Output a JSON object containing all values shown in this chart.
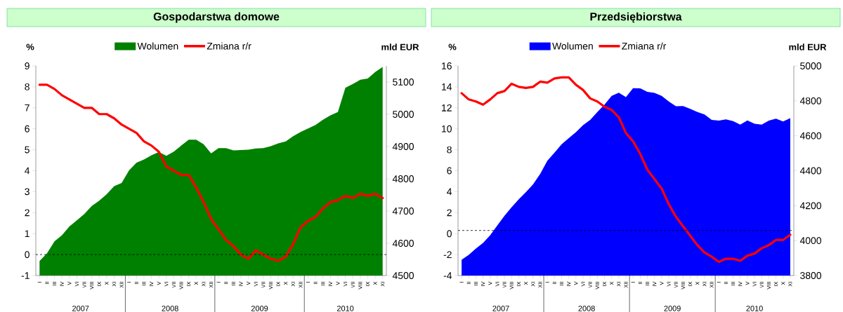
{
  "chart_data": [
    {
      "type": "line",
      "title": "Gospodarstwa domowe",
      "ylabel": "%",
      "y2label": "mld EUR",
      "legend": "top",
      "categories": [
        "I",
        "II",
        "III",
        "IV",
        "V",
        "VI",
        "VII",
        "VIII",
        "IX",
        "X",
        "XI",
        "XII",
        "I",
        "II",
        "III",
        "IV",
        "V",
        "VI",
        "VII",
        "VIII",
        "IX",
        "X",
        "XI",
        "XII",
        "I",
        "II",
        "III",
        "IV",
        "V",
        "VI",
        "VII",
        "VIII",
        "IX",
        "X",
        "XI",
        "XII",
        "I",
        "II",
        "III",
        "IV",
        "V",
        "VI",
        "VII",
        "VIII",
        "IX",
        "X",
        "XI"
      ],
      "ylim": [
        -1,
        9
      ],
      "yticks": [
        -1,
        0,
        1,
        2,
        3,
        4,
        5,
        6,
        7,
        8,
        9
      ],
      "y2lim": [
        4500,
        5150
      ],
      "y2ticks": [
        4500,
        4600,
        4700,
        4800,
        4900,
        5000,
        5100
      ],
      "series": [
        {
          "name": "Wolumen",
          "type": "area",
          "axis": "y2",
          "color": "#008000",
          "values": [
            4545,
            4569,
            4606,
            4625,
            4652,
            4671,
            4691,
            4716,
            4732,
            4752,
            4777,
            4787,
            4826,
            4850,
            4860,
            4873,
            4883,
            4871,
            4884,
            4903,
            4921,
            4921,
            4907,
            4879,
            4895,
            4895,
            4888,
            4889,
            4890,
            4894,
            4895,
            4901,
            4910,
            4916,
            4932,
            4945,
            4956,
            4967,
            4983,
            4997,
            5007,
            5082,
            5094,
            5107,
            5111,
            5131,
            5147
          ]
        },
        {
          "name": "Zmiana r/r",
          "type": "line",
          "color": "#ff0000",
          "values": [
            8.1,
            8.1,
            7.9,
            7.6,
            7.4,
            7.2,
            7.0,
            7.0,
            6.7,
            6.7,
            6.5,
            6.2,
            6.0,
            5.8,
            5.4,
            5.2,
            4.9,
            4.2,
            4.0,
            3.8,
            3.8,
            3.2,
            2.5,
            1.7,
            1.2,
            0.7,
            0.4,
            0.0,
            -0.2,
            0.2,
            0.0,
            -0.2,
            -0.3,
            -0.1,
            0.5,
            1.3,
            1.6,
            1.8,
            2.2,
            2.5,
            2.6,
            2.8,
            2.7,
            2.9,
            2.8,
            2.9,
            2.7
          ]
        }
      ],
      "ref_lines": [
        {
          "axis": "y",
          "value": 0,
          "line_style": "dashed",
          "color": "#000000"
        }
      ],
      "annotations": [
        "2007",
        "2008",
        "2009",
        "2010"
      ]
    },
    {
      "type": "line",
      "title": "Przedsiębiorstwa",
      "ylabel": "%",
      "y2label": "mld EUR",
      "legend": "top",
      "categories": [
        "I",
        "II",
        "III",
        "IV",
        "V",
        "VI",
        "VII",
        "VIII",
        "IX",
        "X",
        "XI",
        "XII",
        "I",
        "II",
        "III",
        "IV",
        "V",
        "VI",
        "VII",
        "VIII",
        "IX",
        "X",
        "XI",
        "XII",
        "I",
        "II",
        "III",
        "IV",
        "V",
        "VI",
        "VII",
        "VIII",
        "IX",
        "X",
        "XI",
        "XII",
        "I",
        "II",
        "III",
        "IV",
        "V",
        "VI",
        "VII",
        "VIII",
        "IX",
        "X",
        "XI"
      ],
      "ylim": [
        -4,
        16
      ],
      "yticks": [
        -4,
        -2,
        0,
        2,
        4,
        6,
        8,
        10,
        12,
        14,
        16
      ],
      "y2lim": [
        3800,
        5000
      ],
      "y2ticks": [
        3800,
        4000,
        4200,
        4400,
        4600,
        4800,
        5000
      ],
      "series": [
        {
          "name": "Wolumen",
          "type": "area",
          "axis": "y2",
          "color": "#0000ff",
          "values": [
            3890,
            3918,
            3955,
            3987,
            4031,
            4087,
            4142,
            4191,
            4236,
            4278,
            4322,
            4382,
            4457,
            4503,
            4552,
            4587,
            4621,
            4661,
            4691,
            4736,
            4778,
            4828,
            4846,
            4821,
            4873,
            4872,
            4851,
            4845,
            4828,
            4796,
            4769,
            4770,
            4754,
            4736,
            4722,
            4691,
            4687,
            4694,
            4684,
            4664,
            4688,
            4669,
            4664,
            4687,
            4698,
            4682,
            4701
          ]
        },
        {
          "name": "Zmiana r/r",
          "type": "line",
          "color": "#ff0000",
          "values": [
            13.4,
            12.8,
            12.6,
            12.3,
            12.8,
            13.4,
            13.6,
            14.3,
            14.0,
            13.9,
            14.0,
            14.5,
            14.4,
            14.8,
            14.9,
            14.9,
            14.2,
            13.7,
            12.9,
            12.6,
            12.1,
            11.8,
            11.1,
            9.6,
            8.8,
            7.6,
            6.1,
            5.2,
            4.3,
            2.8,
            1.6,
            0.7,
            -0.2,
            -1.1,
            -1.8,
            -2.2,
            -2.7,
            -2.4,
            -2.4,
            -2.6,
            -2.1,
            -1.9,
            -1.4,
            -1.1,
            -0.6,
            -0.6,
            -0.1
          ]
        }
      ],
      "ref_lines": [
        {
          "axis": "y",
          "value": 0.3,
          "line_style": "dashed",
          "color": "#000000"
        }
      ],
      "annotations": [
        "2007",
        "2008",
        "2009",
        "2010"
      ]
    }
  ]
}
